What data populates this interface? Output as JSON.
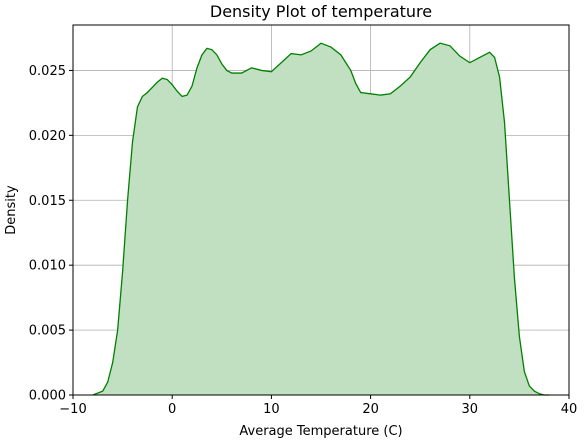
{
  "chart_data": {
    "type": "area",
    "title": "Density Plot of temperature",
    "xlabel": "Average Temperature (C)",
    "ylabel": "Density",
    "xlim": [
      -10,
      40
    ],
    "ylim": [
      0,
      0.0285
    ],
    "x_ticks": [
      -10,
      0,
      10,
      20,
      30,
      40
    ],
    "x_tick_labels": [
      "−10",
      "0",
      "10",
      "20",
      "30",
      "40"
    ],
    "y_ticks": [
      0,
      0.005,
      0.01,
      0.015,
      0.02,
      0.025
    ],
    "y_tick_labels": [
      "0.000",
      "0.005",
      "0.010",
      "0.015",
      "0.020",
      "0.025"
    ],
    "grid": true,
    "colors": {
      "line": "#008000",
      "fill": "#c1dfc1",
      "grid": "#b0b0b0",
      "axes": "#000000"
    },
    "series": [
      {
        "x": [
          -8.0,
          -7.0,
          -6.5,
          -6.0,
          -5.5,
          -5.0,
          -4.5,
          -4.0,
          -3.5,
          -3.0,
          -2.5,
          -2.0,
          -1.5,
          -1.0,
          -0.5,
          0.0,
          0.5,
          1.0,
          1.5,
          2.0,
          2.5,
          3.0,
          3.5,
          4.0,
          4.5,
          5.0,
          5.5,
          6.0,
          7.0,
          8.0,
          9.0,
          10.0,
          11.0,
          12.0,
          13.0,
          14.0,
          15.0,
          16.0,
          17.0,
          18.0,
          18.5,
          19.0,
          20.0,
          21.0,
          22.0,
          23.0,
          24.0,
          25.0,
          26.0,
          27.0,
          28.0,
          29.0,
          30.0,
          31.0,
          32.0,
          32.5,
          33.0,
          33.5,
          34.0,
          34.5,
          35.0,
          35.5,
          36.0,
          36.5,
          37.0,
          37.5,
          38.0
        ],
        "y": [
          0.0,
          0.0003,
          0.001,
          0.0025,
          0.005,
          0.0095,
          0.015,
          0.0195,
          0.0222,
          0.023,
          0.0233,
          0.0237,
          0.0241,
          0.0244,
          0.0243,
          0.0239,
          0.0234,
          0.023,
          0.0231,
          0.0238,
          0.0252,
          0.0262,
          0.0267,
          0.0266,
          0.0262,
          0.0255,
          0.025,
          0.0248,
          0.0248,
          0.0252,
          0.025,
          0.0249,
          0.0256,
          0.0263,
          0.0262,
          0.0265,
          0.0271,
          0.0268,
          0.0262,
          0.025,
          0.024,
          0.0233,
          0.0232,
          0.0231,
          0.0232,
          0.0238,
          0.0245,
          0.0256,
          0.0266,
          0.0271,
          0.0269,
          0.0261,
          0.0256,
          0.026,
          0.0264,
          0.026,
          0.0245,
          0.021,
          0.015,
          0.009,
          0.0045,
          0.0018,
          0.0007,
          0.0003,
          0.0001,
          0.0,
          0.0
        ]
      }
    ]
  }
}
